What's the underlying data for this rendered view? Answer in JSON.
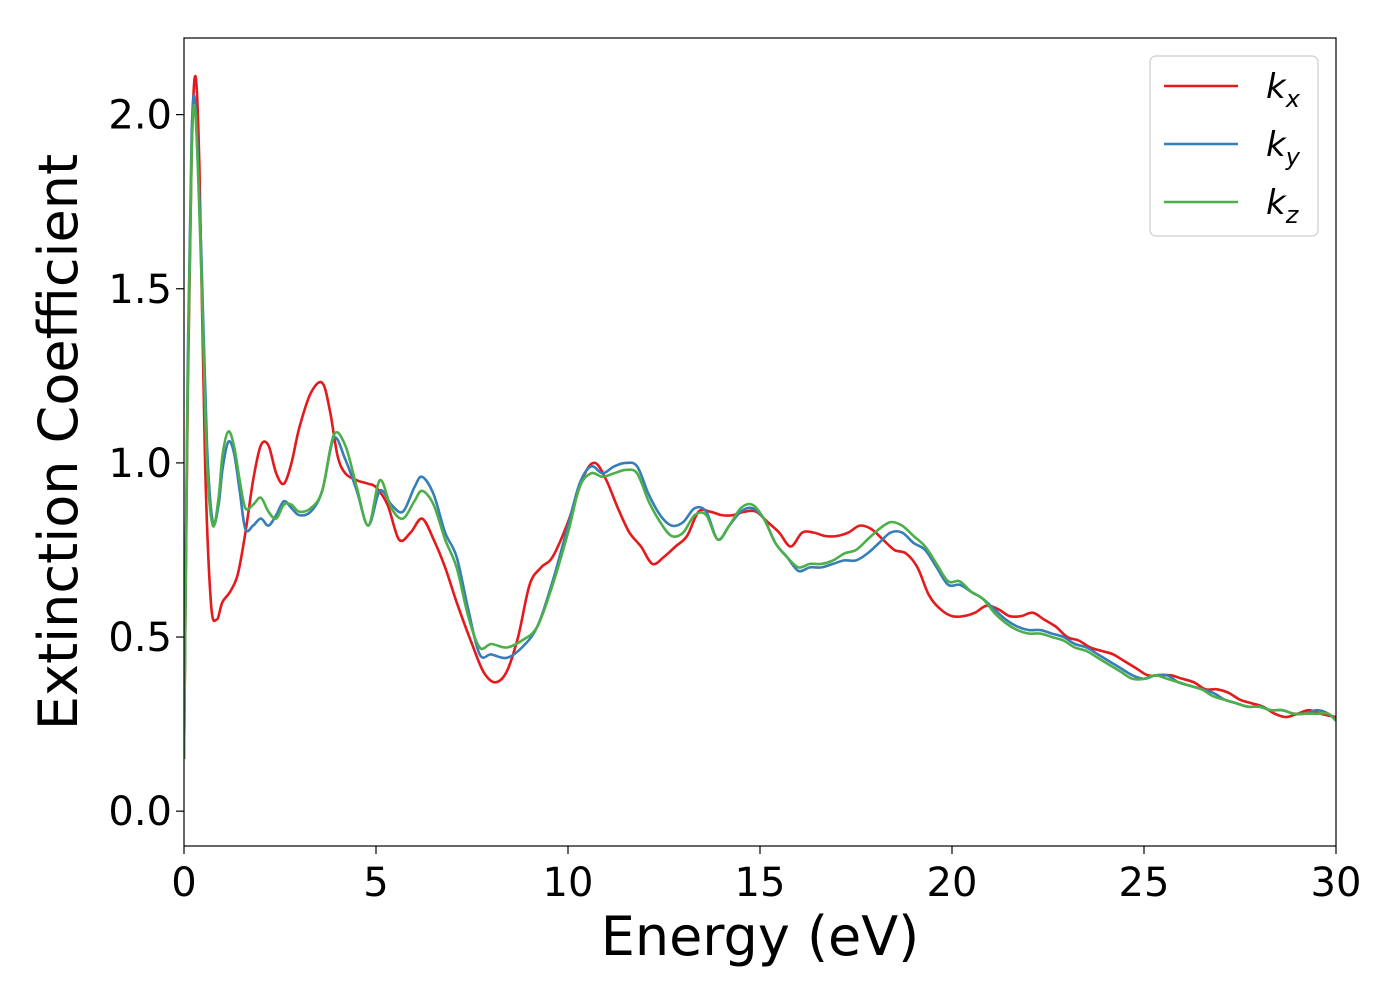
{
  "chart_data": {
    "type": "line",
    "xlabel": "Energy (eV)",
    "ylabel": "Extinction Coefficient",
    "xlim": [
      0,
      30
    ],
    "ylim": [
      -0.1,
      2.22
    ],
    "xticks": [
      "0",
      "5",
      "10",
      "15",
      "20",
      "25",
      "30"
    ],
    "yticks": [
      "0.0",
      "0.5",
      "1.0",
      "1.5",
      "2.0"
    ],
    "legend_position": "top-right",
    "grid": false,
    "series": [
      {
        "name": "k",
        "subscript": "x",
        "color": "#e41a1c",
        "x": [
          0,
          0.1,
          0.2,
          0.3,
          0.4,
          0.55,
          0.7,
          0.85,
          1.0,
          1.2,
          1.4,
          1.6,
          1.8,
          2.0,
          2.2,
          2.4,
          2.6,
          2.8,
          3.0,
          3.3,
          3.6,
          3.8,
          4.0,
          4.2,
          4.5,
          4.8,
          5.0,
          5.3,
          5.6,
          5.9,
          6.2,
          6.5,
          6.8,
          7.1,
          7.5,
          7.8,
          8.1,
          8.4,
          8.7,
          9.0,
          9.3,
          9.6,
          10.0,
          10.4,
          10.7,
          11.0,
          11.3,
          11.6,
          11.9,
          12.2,
          12.5,
          12.8,
          13.1,
          13.4,
          13.7,
          14.0,
          14.3,
          14.6,
          14.9,
          15.2,
          15.5,
          15.8,
          16.1,
          16.4,
          16.7,
          17.0,
          17.3,
          17.6,
          17.9,
          18.2,
          18.5,
          18.8,
          19.1,
          19.4,
          19.7,
          20.0,
          20.3,
          20.6,
          20.9,
          21.2,
          21.5,
          21.8,
          22.1,
          22.4,
          22.7,
          23.0,
          23.3,
          23.6,
          23.9,
          24.2,
          24.5,
          24.8,
          25.1,
          25.4,
          25.7,
          26.0,
          26.3,
          26.6,
          26.9,
          27.2,
          27.5,
          27.8,
          28.1,
          28.4,
          28.7,
          29.0,
          29.3,
          29.6,
          30.0
        ],
        "y": [
          0.15,
          1.2,
          1.9,
          2.11,
          1.85,
          1.0,
          0.6,
          0.55,
          0.6,
          0.63,
          0.68,
          0.8,
          0.95,
          1.05,
          1.05,
          0.97,
          0.94,
          1.0,
          1.1,
          1.2,
          1.23,
          1.15,
          1.02,
          0.97,
          0.95,
          0.94,
          0.93,
          0.88,
          0.78,
          0.8,
          0.84,
          0.78,
          0.7,
          0.6,
          0.48,
          0.4,
          0.37,
          0.4,
          0.5,
          0.65,
          0.7,
          0.73,
          0.83,
          0.96,
          1.0,
          0.95,
          0.87,
          0.8,
          0.76,
          0.71,
          0.73,
          0.76,
          0.79,
          0.86,
          0.86,
          0.85,
          0.85,
          0.86,
          0.86,
          0.83,
          0.8,
          0.76,
          0.8,
          0.8,
          0.79,
          0.79,
          0.8,
          0.82,
          0.81,
          0.78,
          0.75,
          0.74,
          0.7,
          0.62,
          0.58,
          0.56,
          0.56,
          0.57,
          0.59,
          0.58,
          0.56,
          0.56,
          0.57,
          0.55,
          0.53,
          0.5,
          0.49,
          0.47,
          0.46,
          0.45,
          0.43,
          0.41,
          0.39,
          0.39,
          0.39,
          0.38,
          0.37,
          0.35,
          0.35,
          0.34,
          0.32,
          0.31,
          0.3,
          0.28,
          0.27,
          0.28,
          0.29,
          0.28,
          0.27
        ]
      },
      {
        "name": "k",
        "subscript": "y",
        "color": "#377eb8",
        "x": [
          0,
          0.1,
          0.2,
          0.3,
          0.45,
          0.6,
          0.75,
          0.9,
          1.0,
          1.15,
          1.3,
          1.45,
          1.6,
          1.8,
          2.0,
          2.2,
          2.4,
          2.6,
          2.8,
          3.0,
          3.3,
          3.6,
          3.9,
          4.2,
          4.5,
          4.8,
          5.1,
          5.4,
          5.7,
          6.0,
          6.2,
          6.5,
          6.8,
          7.1,
          7.4,
          7.7,
          8.0,
          8.4,
          8.8,
          9.2,
          9.6,
          10.0,
          10.3,
          10.6,
          10.9,
          11.2,
          11.5,
          11.8,
          12.1,
          12.4,
          12.7,
          13.0,
          13.3,
          13.6,
          13.9,
          14.2,
          14.5,
          14.8,
          15.1,
          15.4,
          15.7,
          16.0,
          16.3,
          16.6,
          16.9,
          17.2,
          17.5,
          17.8,
          18.1,
          18.4,
          18.7,
          19.0,
          19.3,
          19.6,
          19.9,
          20.2,
          20.5,
          20.8,
          21.1,
          21.4,
          21.7,
          22.0,
          22.3,
          22.6,
          22.9,
          23.2,
          23.5,
          23.8,
          24.1,
          24.4,
          24.7,
          25.0,
          25.3,
          25.6,
          25.9,
          26.2,
          26.5,
          26.8,
          27.1,
          27.4,
          27.7,
          28.0,
          28.3,
          28.6,
          28.9,
          29.2,
          29.5,
          29.8,
          30.0
        ],
        "y": [
          0.15,
          1.3,
          1.95,
          2.02,
          1.6,
          1.05,
          0.83,
          0.88,
          0.98,
          1.06,
          1.03,
          0.92,
          0.81,
          0.82,
          0.84,
          0.82,
          0.85,
          0.89,
          0.87,
          0.85,
          0.86,
          0.92,
          1.07,
          1.01,
          0.92,
          0.82,
          0.92,
          0.88,
          0.86,
          0.93,
          0.96,
          0.91,
          0.8,
          0.73,
          0.58,
          0.45,
          0.45,
          0.44,
          0.47,
          0.53,
          0.66,
          0.82,
          0.94,
          0.99,
          0.97,
          0.99,
          1.0,
          0.99,
          0.91,
          0.85,
          0.82,
          0.83,
          0.87,
          0.86,
          0.78,
          0.82,
          0.86,
          0.87,
          0.84,
          0.77,
          0.73,
          0.69,
          0.7,
          0.7,
          0.71,
          0.72,
          0.72,
          0.74,
          0.77,
          0.8,
          0.8,
          0.77,
          0.75,
          0.7,
          0.65,
          0.65,
          0.63,
          0.61,
          0.58,
          0.55,
          0.53,
          0.52,
          0.52,
          0.51,
          0.5,
          0.48,
          0.47,
          0.45,
          0.43,
          0.41,
          0.39,
          0.38,
          0.39,
          0.39,
          0.37,
          0.36,
          0.35,
          0.34,
          0.32,
          0.31,
          0.3,
          0.3,
          0.29,
          0.29,
          0.28,
          0.28,
          0.29,
          0.28,
          0.26
        ]
      },
      {
        "name": "k",
        "subscript": "z",
        "color": "#4daf4a",
        "x": [
          0,
          0.1,
          0.2,
          0.3,
          0.45,
          0.6,
          0.75,
          0.9,
          1.0,
          1.15,
          1.3,
          1.45,
          1.6,
          1.8,
          2.0,
          2.2,
          2.4,
          2.6,
          2.8,
          3.0,
          3.3,
          3.6,
          3.9,
          4.2,
          4.5,
          4.8,
          5.1,
          5.4,
          5.7,
          6.0,
          6.2,
          6.5,
          6.8,
          7.1,
          7.4,
          7.7,
          8.0,
          8.4,
          8.8,
          9.2,
          9.6,
          10.0,
          10.3,
          10.6,
          10.9,
          11.2,
          11.5,
          11.8,
          12.1,
          12.4,
          12.7,
          13.0,
          13.3,
          13.6,
          13.9,
          14.2,
          14.5,
          14.8,
          15.1,
          15.4,
          15.7,
          16.0,
          16.3,
          16.6,
          16.9,
          17.2,
          17.5,
          17.8,
          18.1,
          18.4,
          18.7,
          19.0,
          19.3,
          19.6,
          19.9,
          20.2,
          20.5,
          20.8,
          21.1,
          21.4,
          21.7,
          22.0,
          22.3,
          22.6,
          22.9,
          23.2,
          23.5,
          23.8,
          24.1,
          24.4,
          24.7,
          25.0,
          25.3,
          25.6,
          25.9,
          26.2,
          26.5,
          26.8,
          27.1,
          27.4,
          27.7,
          28.0,
          28.3,
          28.6,
          28.9,
          29.2,
          29.5,
          29.8,
          30.0
        ],
        "y": [
          0.15,
          1.25,
          1.9,
          2.0,
          1.55,
          1.0,
          0.82,
          0.9,
          1.02,
          1.09,
          1.05,
          0.95,
          0.87,
          0.88,
          0.9,
          0.86,
          0.84,
          0.88,
          0.88,
          0.86,
          0.87,
          0.92,
          1.08,
          1.05,
          0.93,
          0.82,
          0.95,
          0.87,
          0.84,
          0.89,
          0.92,
          0.88,
          0.78,
          0.7,
          0.56,
          0.47,
          0.48,
          0.47,
          0.49,
          0.53,
          0.65,
          0.8,
          0.93,
          0.97,
          0.96,
          0.97,
          0.98,
          0.97,
          0.89,
          0.83,
          0.79,
          0.8,
          0.85,
          0.85,
          0.78,
          0.82,
          0.87,
          0.88,
          0.84,
          0.77,
          0.73,
          0.7,
          0.71,
          0.71,
          0.72,
          0.74,
          0.75,
          0.78,
          0.81,
          0.83,
          0.82,
          0.79,
          0.76,
          0.71,
          0.66,
          0.66,
          0.63,
          0.61,
          0.57,
          0.54,
          0.52,
          0.51,
          0.51,
          0.5,
          0.49,
          0.47,
          0.46,
          0.44,
          0.42,
          0.4,
          0.38,
          0.38,
          0.39,
          0.38,
          0.37,
          0.36,
          0.35,
          0.33,
          0.32,
          0.31,
          0.3,
          0.3,
          0.29,
          0.29,
          0.28,
          0.28,
          0.28,
          0.28,
          0.26
        ]
      }
    ]
  }
}
